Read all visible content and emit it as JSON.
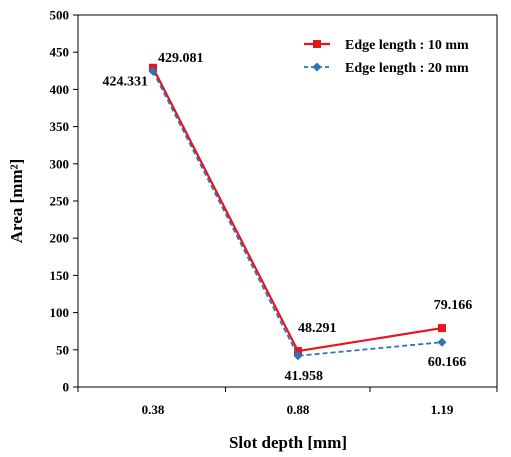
{
  "chart_data": {
    "type": "line",
    "xlabel": "Slot depth [mm]",
    "ylabel": "Area [mm²]",
    "categories": [
      "0.38",
      "0.88",
      "1.19"
    ],
    "ylim": [
      0,
      500
    ],
    "yticks": [
      "0",
      "50",
      "100",
      "150",
      "200",
      "250",
      "300",
      "350",
      "400",
      "450",
      "500"
    ],
    "grid": false,
    "legend_position": "top-right",
    "series": [
      {
        "name": "Edge length : 10 mm",
        "values": [
          429.081,
          48.291,
          79.166
        ],
        "labels": [
          "429.081",
          "48.291",
          "79.166"
        ],
        "color": "#e8141c",
        "line_style": "solid",
        "marker": "square"
      },
      {
        "name": "Edge length : 20 mm",
        "values": [
          424.331,
          41.958,
          60.166
        ],
        "labels": [
          "424.331",
          "41.958",
          "60.166"
        ],
        "color": "#2e75b6",
        "line_style": "dashed",
        "marker": "diamond"
      }
    ]
  }
}
